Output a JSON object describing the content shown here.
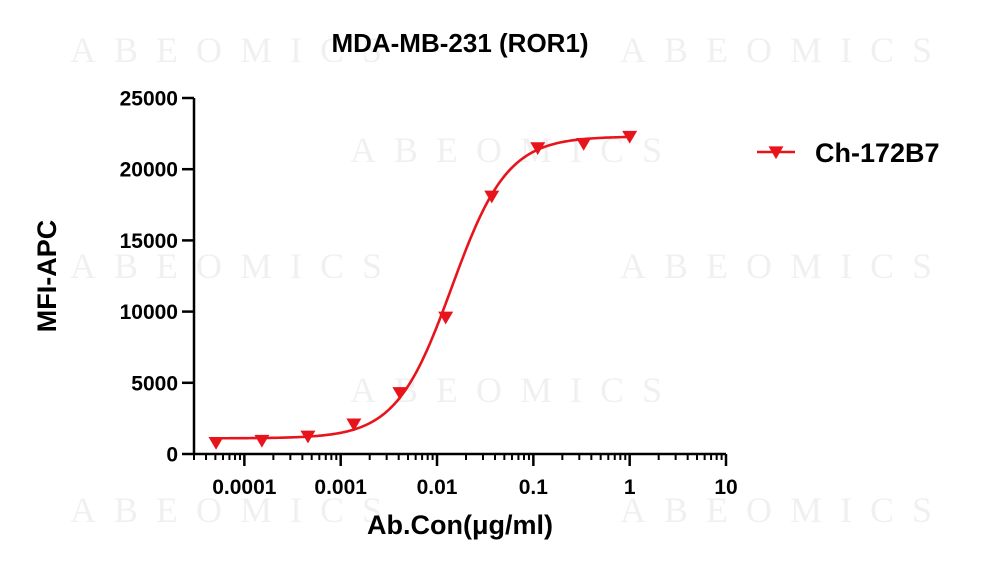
{
  "watermark": {
    "text": "ABEOMICS"
  },
  "chart_data": {
    "type": "scatter",
    "title": "MDA-MB-231 (ROR1)",
    "xlabel": "Ab.Con(μg/ml)",
    "ylabel": "MFI-APC",
    "x_scale": "log",
    "xlim": [
      3e-05,
      10
    ],
    "ylim": [
      0,
      25000
    ],
    "x_ticks": [
      {
        "value": 0.0001,
        "label": "0.0001"
      },
      {
        "value": 0.001,
        "label": "0.001"
      },
      {
        "value": 0.01,
        "label": "0.01"
      },
      {
        "value": 0.1,
        "label": "0.1"
      },
      {
        "value": 1,
        "label": "1"
      },
      {
        "value": 10,
        "label": "10"
      }
    ],
    "y_ticks": [
      {
        "value": 0,
        "label": "0"
      },
      {
        "value": 5000,
        "label": "5000"
      },
      {
        "value": 10000,
        "label": "10000"
      },
      {
        "value": 15000,
        "label": "15000"
      },
      {
        "value": 20000,
        "label": "20000"
      },
      {
        "value": 25000,
        "label": "25000"
      }
    ],
    "grid": false,
    "legend_position": "right",
    "series": [
      {
        "name": "Ch-172B7",
        "color": "#e8141c",
        "marker": "triangle-down",
        "fit": "sigmoidal 4PL",
        "x": [
          5.08e-05,
          0.000152,
          0.000457,
          0.00137,
          0.00412,
          0.0123,
          0.037,
          0.111,
          0.333,
          1
        ],
        "y": [
          800,
          950,
          1250,
          2100,
          4300,
          9600,
          18100,
          21500,
          21800,
          22300
        ]
      }
    ]
  }
}
